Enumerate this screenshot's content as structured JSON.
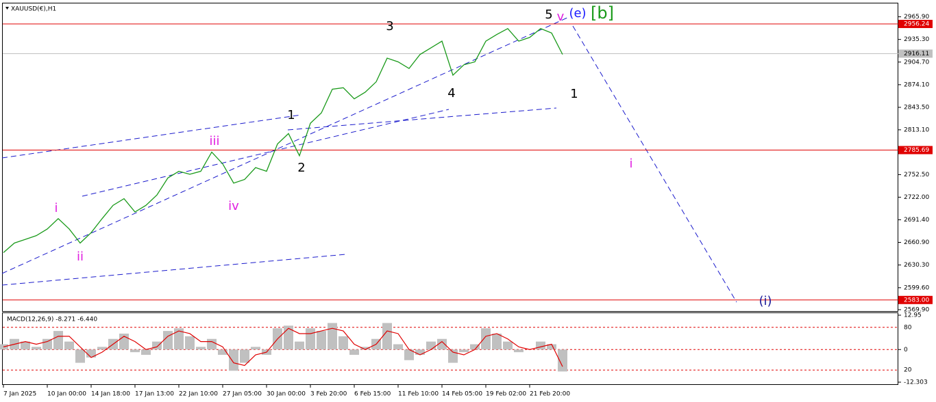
{
  "chart_data": [
    {
      "type": "line",
      "title": "XAUUSD(€),H1",
      "categories": [
        "7 Jan 2025",
        null,
        null,
        null,
        "10 Jan 00:00",
        null,
        null,
        null,
        "14 Jan 18:00",
        null,
        null,
        null,
        "17 Jan 13:00",
        null,
        null,
        null,
        "22 Jan 10:00",
        null,
        null,
        null,
        "27 Jan 05:00",
        null,
        null,
        null,
        "30 Jan 00:00",
        null,
        null,
        null,
        "3 Feb 20:00",
        null,
        null,
        null,
        "6 Feb 15:00",
        null,
        null,
        null,
        "11 Feb 10:00",
        null,
        null,
        null,
        "14 Feb 05:00",
        null,
        null,
        null,
        "19 Feb 02:00",
        null,
        null,
        null,
        "21 Feb 20:00",
        null,
        null,
        null
      ],
      "series": [
        {
          "color": "#1a9a1a",
          "values": [
            2647,
            2660,
            2665,
            2670,
            2679,
            2693,
            2679,
            2660,
            2674,
            2693,
            2711,
            2720,
            2702,
            2711,
            2725,
            2748,
            2757,
            2753,
            2757,
            2783,
            2767,
            2741,
            2746,
            2762,
            2757,
            2794,
            2808,
            2778,
            2822,
            2836,
            2868,
            2870,
            2855,
            2864,
            2878,
            2910,
            2905,
            2896,
            2915,
            2924,
            2933,
            2887,
            2901,
            2905,
            2933,
            2942,
            2950,
            2933,
            2938,
            2950,
            2944,
            2915
          ]
        }
      ],
      "ylim": [
        2568,
        2984
      ],
      "yticks": [
        {
          "value": 2965.9,
          "label": "2965.90"
        },
        {
          "value": 2935.3,
          "label": "2935.30"
        },
        {
          "value": 2904.7,
          "label": "2904.70"
        },
        {
          "value": 2874.1,
          "label": "2874.10"
        },
        {
          "value": 2843.5,
          "label": "2843.50"
        },
        {
          "value": 2813.1,
          "label": "2813.10"
        },
        {
          "value": 2752.5,
          "label": "2752.50"
        },
        {
          "value": 2722,
          "label": "2722.00"
        },
        {
          "value": 2691.4,
          "label": "2691.40"
        },
        {
          "value": 2660.9,
          "label": "2660.90"
        },
        {
          "value": 2630.3,
          "label": "2630.30"
        },
        {
          "value": 2599.6,
          "label": "2599.60"
        },
        {
          "value": 2569.9,
          "label": "2569.90"
        }
      ],
      "levels": [
        {
          "value": 2956.24,
          "label": "2956.24",
          "color": "#e00000"
        },
        {
          "value": 2916.11,
          "label": "2916.11",
          "color": "#c0c0c0"
        },
        {
          "value": 2785.69,
          "label": "2785.69",
          "color": "#e00000"
        },
        {
          "value": 2583,
          "label": "2583.00",
          "color": "#e00000"
        }
      ],
      "annotations": [
        {
          "text": "i",
          "color": "#e020e0"
        },
        {
          "text": "ii",
          "color": "#e020e0"
        },
        {
          "text": "iii",
          "color": "#e020e0"
        },
        {
          "text": "iv",
          "color": "#e020e0"
        },
        {
          "text": "1",
          "color": "#000000"
        },
        {
          "text": "2",
          "color": "#000000"
        },
        {
          "text": "3",
          "color": "#000000"
        },
        {
          "text": "4",
          "color": "#000000"
        },
        {
          "text": "5",
          "color": "#000000"
        },
        {
          "text": "v",
          "color": "#e020e0"
        },
        {
          "text": "(e)",
          "color": "#1a1aff"
        },
        {
          "text": "[b]",
          "color": "#1a9a1a"
        },
        {
          "text": "1",
          "color": "#000000"
        },
        {
          "text": "i",
          "color": "#e020e0"
        },
        {
          "text": "(i)",
          "color": "#1a1a99"
        }
      ]
    },
    {
      "type": "macd",
      "title": "MACD(12,26,9) -8.271 -6.440",
      "series": [
        {
          "color": "#c0c0c0",
          "values": [
            2,
            4,
            3,
            1,
            4,
            7,
            3,
            -5,
            -3,
            1,
            4,
            6,
            -1,
            -2,
            3,
            7,
            8,
            5,
            1,
            4,
            -2,
            -8,
            -5,
            1,
            -2,
            8,
            9,
            3,
            8,
            7,
            10,
            5,
            -2,
            1,
            4,
            10,
            2,
            -4,
            -2,
            3,
            4,
            -5,
            -1,
            2,
            8,
            6,
            3,
            -1,
            0,
            3,
            2,
            -8.271
          ]
        },
        {
          "color": "#e00000",
          "values": [
            1,
            2,
            3,
            2,
            3,
            5,
            5,
            1,
            -3,
            -1,
            2,
            5,
            3,
            0,
            1,
            5,
            7,
            6,
            3,
            3,
            1,
            -5,
            -6,
            -2,
            -1,
            4,
            8,
            6,
            6,
            7,
            8,
            7,
            2,
            0,
            2,
            7,
            6,
            0,
            -2,
            0,
            3,
            -1,
            -2,
            0,
            5,
            6,
            4,
            1,
            0,
            1,
            2,
            -6.44
          ]
        }
      ],
      "ylim": [
        -12.303,
        12.95
      ],
      "yticks": [
        12.95,
        0,
        -12.303
      ],
      "y2lim": [
        0,
        100
      ],
      "y2ticks": [
        80,
        20
      ]
    }
  ]
}
